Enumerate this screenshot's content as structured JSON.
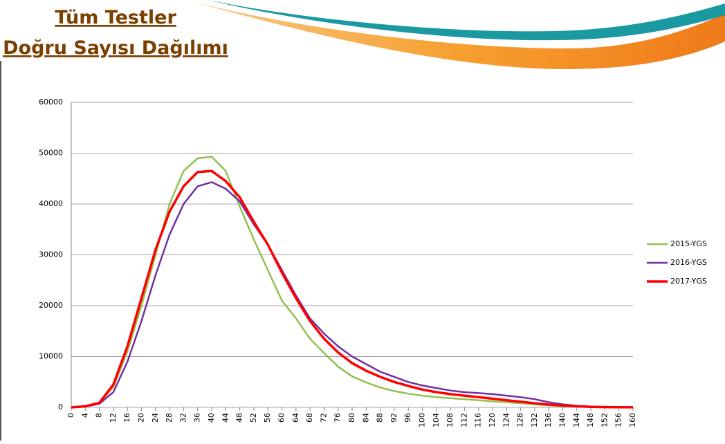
{
  "chart_data": {
    "type": "line",
    "title": "Tüm Testler",
    "subtitle": "Doğru Sayısı Dağılımı",
    "x": [
      0,
      4,
      8,
      12,
      16,
      20,
      24,
      28,
      32,
      36,
      40,
      44,
      48,
      52,
      56,
      60,
      64,
      68,
      72,
      76,
      80,
      84,
      88,
      92,
      96,
      100,
      104,
      108,
      112,
      116,
      120,
      124,
      128,
      132,
      136,
      140,
      144,
      148,
      152,
      156,
      160
    ],
    "series": [
      {
        "name": "2015-YGS",
        "color": "#92c04e",
        "values": [
          0,
          200,
          800,
          4000,
          11000,
          20000,
          30000,
          40000,
          46500,
          49000,
          49300,
          46500,
          39500,
          33000,
          27000,
          21000,
          17500,
          13500,
          10700,
          8000,
          6100,
          4900,
          3900,
          3200,
          2700,
          2300,
          2000,
          1800,
          1600,
          1400,
          1200,
          1000,
          800,
          600,
          400,
          250,
          150,
          80,
          40,
          20,
          10
        ]
      },
      {
        "name": "2016-YGS",
        "color": "#7030a0",
        "values": [
          0,
          150,
          700,
          3000,
          9000,
          17000,
          26000,
          34000,
          40000,
          43500,
          44300,
          43000,
          40500,
          36000,
          32000,
          27000,
          22000,
          17500,
          14500,
          12000,
          10000,
          8500,
          7000,
          6000,
          5000,
          4300,
          3800,
          3300,
          3000,
          2800,
          2600,
          2300,
          2000,
          1600,
          1000,
          600,
          300,
          150,
          80,
          40,
          20
        ]
      },
      {
        "name": "2017-YGS",
        "color": "#ff0000",
        "values": [
          0,
          200,
          900,
          4500,
          12000,
          21500,
          31000,
          38500,
          43500,
          46300,
          46500,
          44500,
          41300,
          36500,
          32000,
          26500,
          21500,
          17000,
          13500,
          10800,
          8700,
          7200,
          6000,
          5000,
          4200,
          3500,
          3000,
          2600,
          2300,
          2000,
          1700,
          1400,
          1100,
          800,
          550,
          350,
          200,
          100,
          50,
          25,
          10
        ]
      }
    ],
    "xlim": [
      0,
      160
    ],
    "xticks": [
      0,
      4,
      8,
      12,
      16,
      20,
      24,
      28,
      32,
      36,
      40,
      44,
      48,
      52,
      56,
      60,
      64,
      68,
      72,
      76,
      80,
      84,
      88,
      92,
      96,
      100,
      104,
      108,
      112,
      116,
      120,
      124,
      128,
      132,
      136,
      140,
      144,
      148,
      152,
      156,
      160
    ],
    "ylim": [
      0,
      60000
    ],
    "yticks": [
      0,
      10000,
      20000,
      30000,
      40000,
      50000,
      60000
    ],
    "grid": true,
    "legend": "right"
  }
}
